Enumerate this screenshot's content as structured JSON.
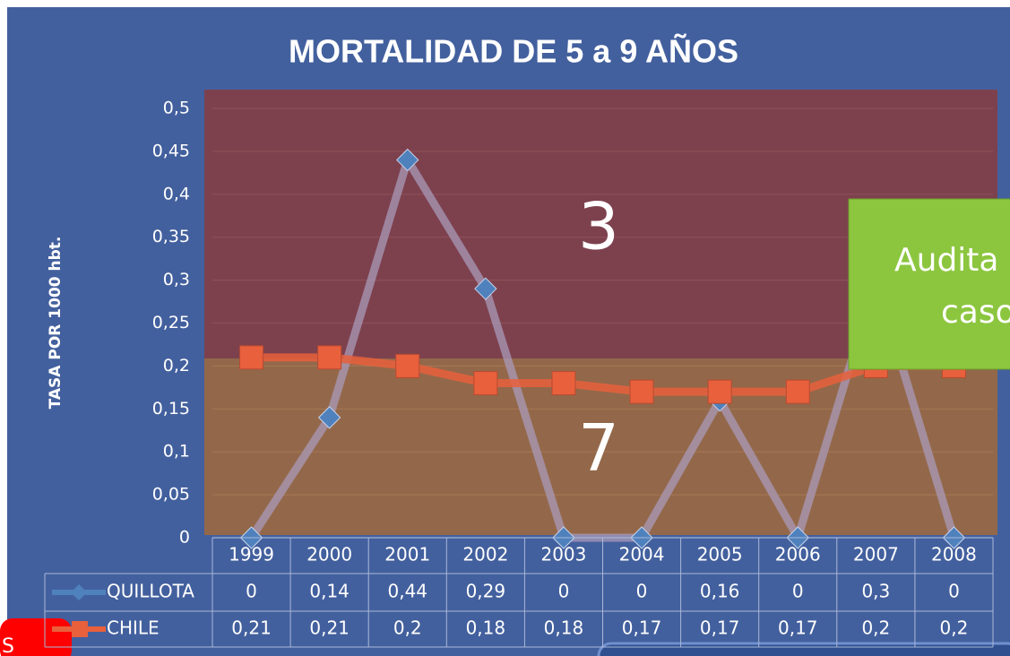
{
  "chart_data": {
    "type": "line",
    "title": "MORTALIDAD DE 5 a 9 AÑOS",
    "y_label": "TASA POR 1000 hbt.",
    "categories": [
      "1999",
      "2000",
      "2001",
      "2002",
      "2003",
      "2004",
      "2005",
      "2006",
      "2007",
      "2008"
    ],
    "series": [
      {
        "name": "QUILLOTA",
        "color": "#4f81bd",
        "values": [
          0,
          0.14,
          0.44,
          0.29,
          0,
          0,
          0.16,
          0,
          0.3,
          0
        ],
        "value_labels": [
          "0",
          "0,14",
          "0,44",
          "0,29",
          "0",
          "0",
          "0,16",
          "0",
          "0,3",
          "0"
        ]
      },
      {
        "name": "CHILE",
        "color": "#e8603c",
        "values": [
          0.21,
          0.21,
          0.2,
          0.18,
          0.18,
          0.17,
          0.17,
          0.17,
          0.2,
          0.2
        ],
        "value_labels": [
          "0,21",
          "0,21",
          "0,2",
          "0,18",
          "0,18",
          "0,17",
          "0,17",
          "0,17",
          "0,2",
          "0,2"
        ]
      }
    ],
    "ylim": [
      0,
      0.5
    ],
    "yticks": [
      0,
      {
        "value": 0.05,
        "label": "0,05"
      },
      {
        "value": 0.1,
        "label": "0,1"
      },
      {
        "value": 0.15,
        "label": "0,15"
      },
      {
        "value": 0.2,
        "label": "0,2"
      },
      {
        "value": 0.25,
        "label": "0,25"
      },
      {
        "value": 0.3,
        "label": "0,3"
      },
      {
        "value": 0.35,
        "label": "0,35"
      },
      {
        "value": 0.4,
        "label": "0,4"
      },
      {
        "value": 0.45,
        "label": "0,45"
      },
      {
        "value": 0.5,
        "label": "0,5"
      }
    ],
    "grid": true,
    "annotations": [
      "3",
      "7",
      "Audita",
      "caso",
      "S"
    ]
  }
}
